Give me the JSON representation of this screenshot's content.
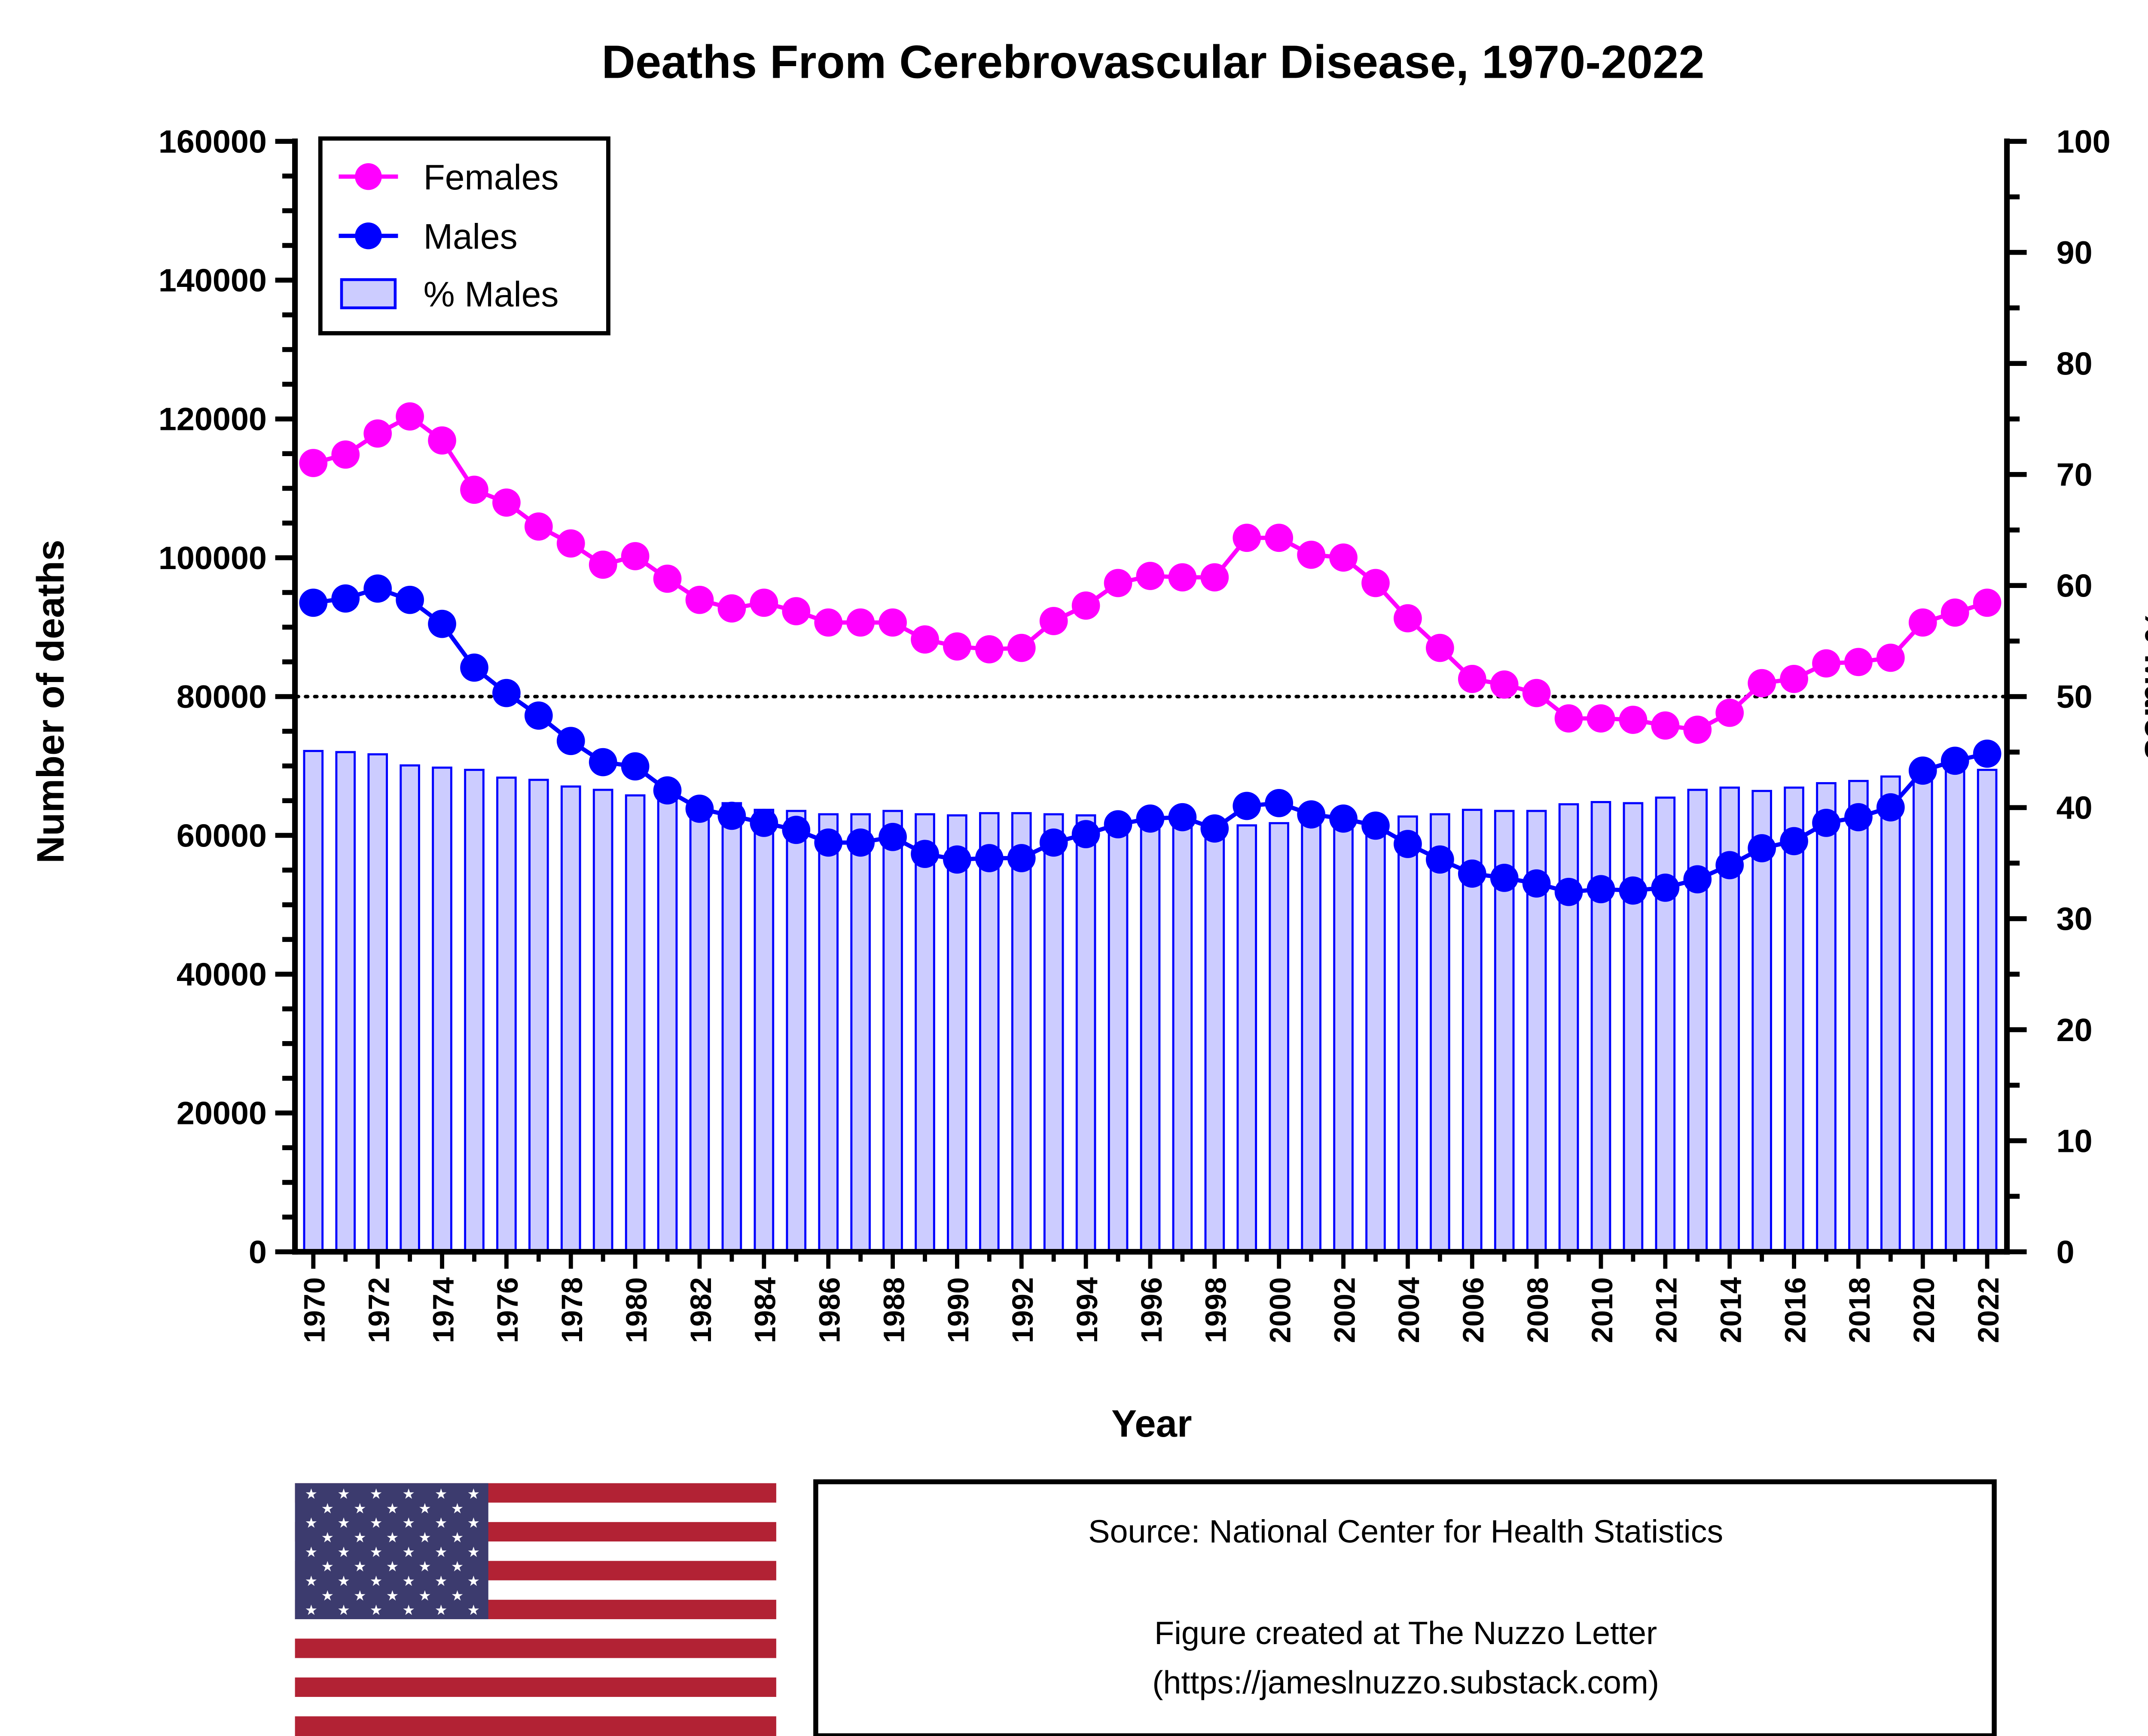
{
  "chart_data": {
    "type": "line+bar",
    "title": "Deaths From Cerebrovascular Disease, 1970-2022",
    "xlabel": "Year",
    "ylabel": "Number of deaths",
    "y2label": "% Males",
    "ylim": [
      0,
      160000
    ],
    "y2lim": [
      0,
      100
    ],
    "yticks": [
      "0",
      "20000",
      "40000",
      "60000",
      "80000",
      "100000",
      "120000",
      "140000",
      "160000"
    ],
    "y2ticks": [
      "0",
      "10",
      "20",
      "30",
      "40",
      "50",
      "60",
      "70",
      "80",
      "90",
      "100"
    ],
    "reference_line": {
      "y2": 50,
      "style": "dotted"
    },
    "legend_position": "top-left",
    "x": [
      1970,
      1971,
      1972,
      1973,
      1974,
      1975,
      1976,
      1977,
      1978,
      1979,
      1980,
      1981,
      1982,
      1983,
      1984,
      1985,
      1986,
      1987,
      1988,
      1989,
      1990,
      1991,
      1992,
      1993,
      1994,
      1995,
      1996,
      1997,
      1998,
      1999,
      2000,
      2001,
      2002,
      2003,
      2004,
      2005,
      2006,
      2007,
      2008,
      2009,
      2010,
      2011,
      2012,
      2013,
      2014,
      2015,
      2016,
      2017,
      2018,
      2019,
      2020,
      2021,
      2022
    ],
    "series": [
      {
        "name": "Females",
        "kind": "line",
        "color": "#ff00ff",
        "values": [
          113650,
          114870,
          117900,
          120360,
          116900,
          109800,
          107950,
          104500,
          102060,
          99000,
          100230,
          96980,
          93930,
          92700,
          93520,
          92300,
          90670,
          90670,
          90670,
          88230,
          87220,
          86810,
          87010,
          90880,
          93110,
          96360,
          97380,
          97180,
          97180,
          102870,
          102870,
          100430,
          100030,
          96360,
          91280,
          87010,
          82540,
          81730,
          80510,
          76850,
          76850,
          76650,
          75830,
          75220,
          77660,
          81930,
          82540,
          84780,
          84980,
          85590,
          90670,
          92100,
          93520
        ]
      },
      {
        "name": "Males",
        "kind": "line",
        "color": "#0000ff",
        "values": [
          93520,
          94130,
          95560,
          93930,
          90470,
          84170,
          80510,
          77260,
          73600,
          70550,
          69940,
          66480,
          63840,
          62820,
          61800,
          60790,
          58960,
          58960,
          59770,
          57330,
          56520,
          56720,
          56720,
          58960,
          60180,
          61600,
          62420,
          62620,
          60990,
          64240,
          64650,
          63020,
          62420,
          61400,
          58760,
          56520,
          54490,
          53880,
          53070,
          51850,
          52250,
          52050,
          52460,
          53670,
          55710,
          58150,
          59170,
          61800,
          62620,
          64040,
          69330,
          70750,
          71770
        ]
      },
      {
        "name": "% Males",
        "kind": "bar",
        "axis": "right",
        "color": "#ccccff",
        "edge": "#0000ff",
        "values": [
          45.1,
          45.0,
          44.8,
          43.8,
          43.6,
          43.4,
          42.7,
          42.5,
          41.9,
          41.6,
          41.1,
          40.7,
          40.5,
          40.4,
          39.8,
          39.7,
          39.4,
          39.4,
          39.7,
          39.4,
          39.3,
          39.5,
          39.5,
          39.4,
          39.3,
          39.0,
          39.1,
          39.2,
          38.6,
          38.4,
          38.6,
          38.6,
          38.4,
          38.9,
          39.2,
          39.4,
          39.8,
          39.7,
          39.7,
          40.3,
          40.5,
          40.4,
          40.9,
          41.6,
          41.8,
          41.5,
          41.8,
          42.2,
          42.4,
          42.8,
          43.3,
          43.5,
          43.4
        ]
      }
    ]
  },
  "footer": {
    "source": "Source: National Center for Health Statistics",
    "credit_line1": "Figure created at The Nuzzo Letter",
    "credit_line2": "(https://jameslnuzzo.substack.com)"
  }
}
